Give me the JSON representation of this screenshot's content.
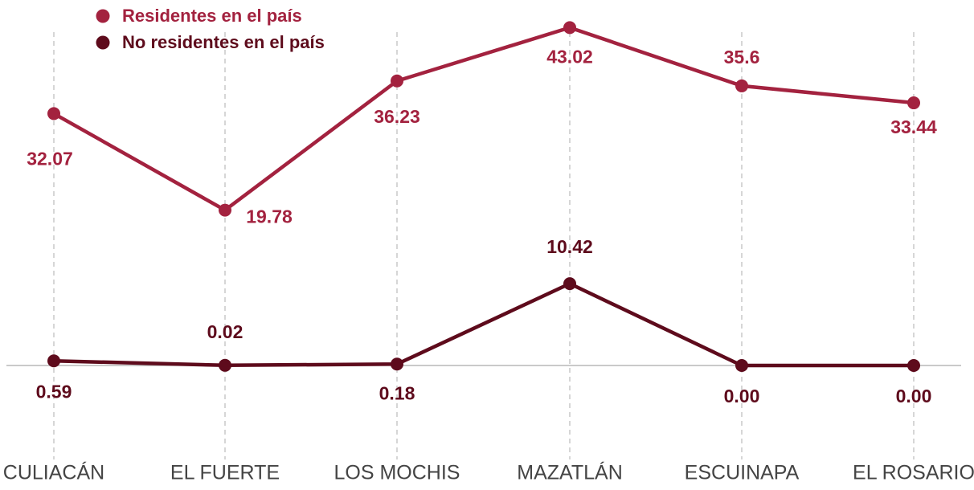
{
  "chart_data": {
    "type": "line",
    "categories": [
      "CULIACÁN",
      "EL FUERTE",
      "LOS MOCHIS",
      "MAZATLÁN",
      "ESCUINAPA",
      "EL ROSARIO"
    ],
    "series": [
      {
        "name": "Residentes en el país",
        "color": "#a3223f",
        "values": [
          32.07,
          19.78,
          36.23,
          43.02,
          35.6,
          33.44
        ],
        "value_labels": [
          "32.07",
          "19.78",
          "36.23",
          "43.02",
          "35.6",
          "33.44"
        ]
      },
      {
        "name": "No residentes en el país",
        "color": "#5e0b1c",
        "values": [
          0.59,
          0.02,
          0.18,
          10.42,
          0,
          0
        ],
        "value_labels": [
          "0.59",
          "0.02",
          "0.18",
          "10.42",
          "0.00",
          "0.00"
        ]
      }
    ],
    "ylim": [
      0,
      45
    ]
  }
}
